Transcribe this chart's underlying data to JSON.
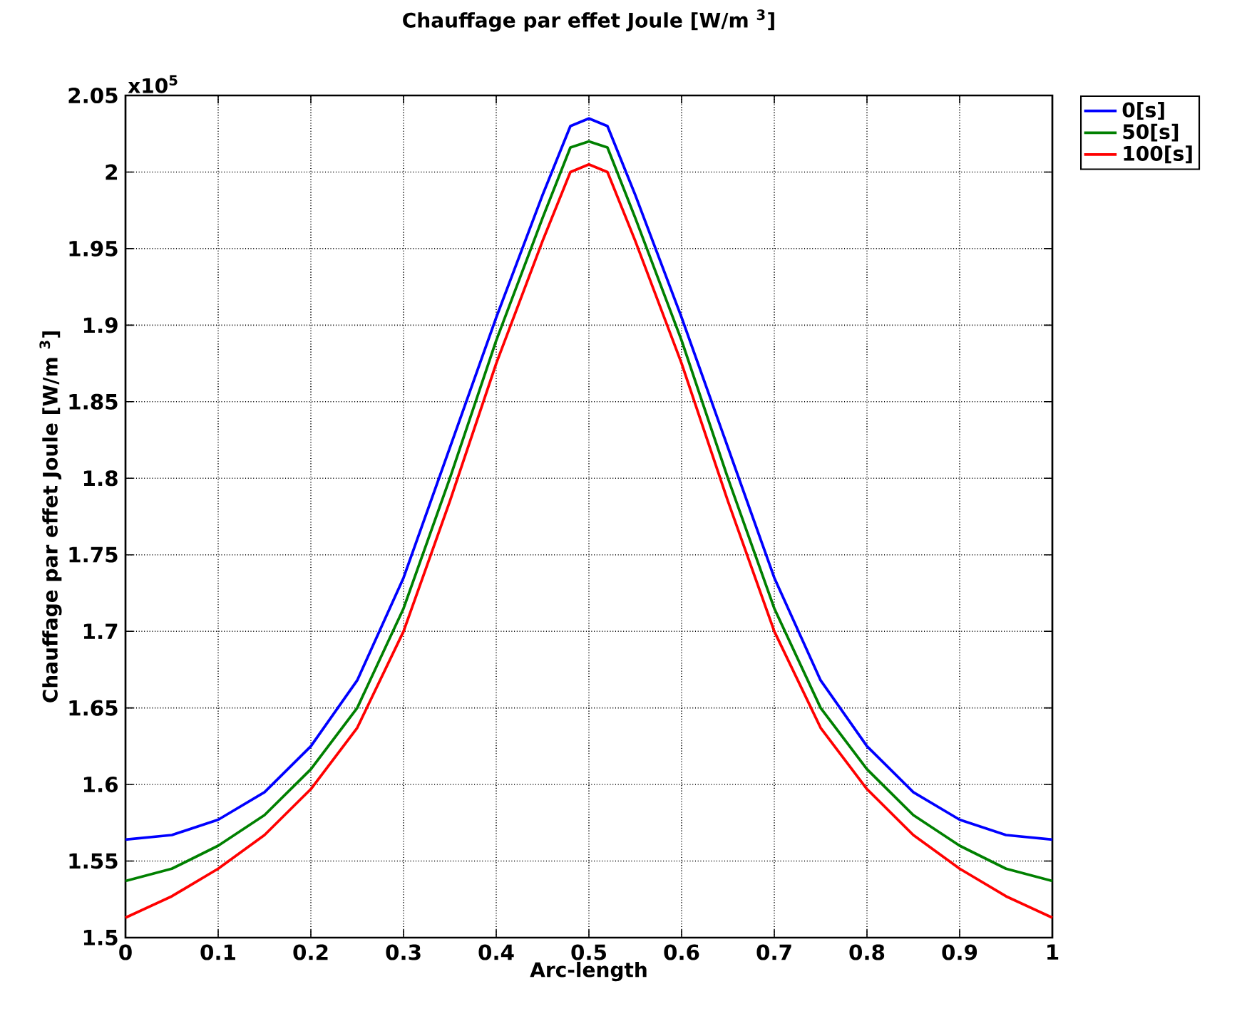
{
  "chart_data": {
    "type": "line",
    "title": "Chauffage par effet Joule [W/m $^{3}$]",
    "xlabel": "Arc-length",
    "ylabel": "Chauffage par effet Joule [W/m $^{3}$]",
    "annotations": [
      "x10$^{5}$"
    ],
    "x": [
      0,
      0.05,
      0.1,
      0.15,
      0.2,
      0.25,
      0.3,
      0.35,
      0.4,
      0.45,
      0.48,
      0.5,
      0.52,
      0.55,
      0.6,
      0.65,
      0.7,
      0.75,
      0.8,
      0.85,
      0.9,
      0.95,
      1
    ],
    "series": [
      {
        "name": "0[s]",
        "color": "#0000ff",
        "values": [
          1.564,
          1.567,
          1.577,
          1.595,
          1.625,
          1.668,
          1.735,
          1.82,
          1.905,
          1.985,
          2.03,
          2.035,
          2.03,
          1.985,
          1.905,
          1.82,
          1.735,
          1.668,
          1.625,
          1.595,
          1.577,
          1.567,
          1.564
        ]
      },
      {
        "name": "50[s]",
        "color": "#008000",
        "values": [
          1.537,
          1.545,
          1.56,
          1.58,
          1.61,
          1.65,
          1.715,
          1.8,
          1.89,
          1.97,
          2.016,
          2.02,
          2.016,
          1.97,
          1.89,
          1.8,
          1.715,
          1.65,
          1.61,
          1.58,
          1.56,
          1.545,
          1.537
        ]
      },
      {
        "name": "100[s]",
        "color": "#ff0000",
        "values": [
          1.513,
          1.527,
          1.545,
          1.567,
          1.597,
          1.637,
          1.7,
          1.785,
          1.875,
          1.955,
          2.0,
          2.005,
          2.0,
          1.955,
          1.875,
          1.785,
          1.7,
          1.637,
          1.597,
          1.567,
          1.545,
          1.527,
          1.513
        ]
      }
    ],
    "xlim": [
      0,
      1
    ],
    "ylim": [
      1.5,
      2.05
    ],
    "xticks": [
      0,
      0.1,
      0.2,
      0.3,
      0.4,
      0.5,
      0.6,
      0.7,
      0.8,
      0.9,
      1
    ],
    "yticks": [
      1.5,
      1.55,
      1.6,
      1.65,
      1.7,
      1.75,
      1.8,
      1.85,
      1.9,
      1.95,
      2,
      2.05
    ],
    "grid": true,
    "legend": "top right"
  }
}
